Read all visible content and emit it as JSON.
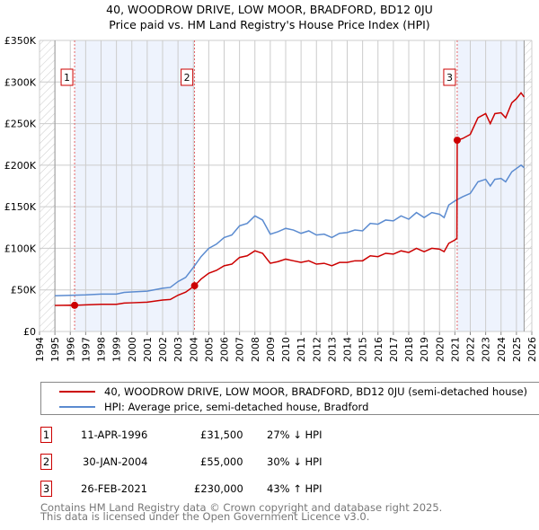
{
  "chart_data": {
    "type": "line",
    "title": "40, WOODROW DRIVE, LOW MOOR, BRADFORD, BD12 0JU",
    "subtitle": "Price paid vs. HM Land Registry's House Price Index (HPI)",
    "xlim": [
      1994,
      2026
    ],
    "ylim": [
      0,
      350000
    ],
    "x_ticks": [
      "1994",
      "1995",
      "1996",
      "1997",
      "1998",
      "1999",
      "2000",
      "2001",
      "2002",
      "2003",
      "2004",
      "2005",
      "2006",
      "2007",
      "2008",
      "2009",
      "2010",
      "2011",
      "2012",
      "2013",
      "2014",
      "2015",
      "2016",
      "2017",
      "2018",
      "2019",
      "2020",
      "2021",
      "2022",
      "2023",
      "2024",
      "2025",
      "2026"
    ],
    "y_ticks": [
      {
        "v": 0,
        "label": "£0"
      },
      {
        "v": 50000,
        "label": "£50K"
      },
      {
        "v": 100000,
        "label": "£100K"
      },
      {
        "v": 150000,
        "label": "£150K"
      },
      {
        "v": 200000,
        "label": "£200K"
      },
      {
        "v": 250000,
        "label": "£250K"
      },
      {
        "v": 300000,
        "label": "£300K"
      },
      {
        "v": 350000,
        "label": "£350K"
      }
    ],
    "grid": true,
    "shaded_periods": [
      [
        1996.28,
        2004.08
      ],
      [
        2021.15,
        2025.5
      ]
    ],
    "hatched_before": 1995,
    "hatched_after": 2025.5,
    "series": [
      {
        "name": "40, WOODROW DRIVE, LOW MOOR, BRADFORD, BD12 0JU (semi-detached house)",
        "color": "#cc0000",
        "x": [
          1995,
          1996,
          1996.28,
          1997,
          1998,
          1999,
          1999.5,
          2000,
          2001,
          2002,
          2002.5,
          2003,
          2003.5,
          2004.08,
          2004.5,
          2005,
          2005.5,
          2006,
          2006.5,
          2007,
          2007.5,
          2008,
          2008.5,
          2009,
          2009.5,
          2010,
          2010.5,
          2011,
          2011.5,
          2012,
          2012.5,
          2013,
          2013.5,
          2014,
          2014.5,
          2015,
          2015.5,
          2016,
          2016.5,
          2017,
          2017.5,
          2018,
          2018.5,
          2019,
          2019.5,
          2020,
          2020.3,
          2020.6,
          2021,
          2021.13,
          2021.15,
          2021.5,
          2022,
          2022.5,
          2023,
          2023.3,
          2023.6,
          2024,
          2024.3,
          2024.7,
          2025,
          2025.3,
          2025.5
        ],
        "y": [
          31300,
          31600,
          31500,
          32000,
          32700,
          32700,
          34200,
          34500,
          35300,
          37800,
          38500,
          43600,
          47300,
          55000,
          63000,
          70000,
          73500,
          79000,
          81000,
          89000,
          91000,
          97000,
          94000,
          82000,
          84000,
          87000,
          85000,
          83000,
          85000,
          81000,
          82000,
          79000,
          83000,
          83000,
          85000,
          85000,
          91000,
          90000,
          94000,
          93000,
          97000,
          95000,
          100000,
          96000,
          100000,
          99000,
          96000,
          106000,
          110000,
          112000,
          230000,
          232000,
          237000,
          257000,
          262000,
          250000,
          262000,
          263000,
          257000,
          275000,
          280000,
          287000,
          282000
        ]
      },
      {
        "name": "HPI: Average price, semi-detached house, Bradford",
        "color": "#5b8bd0",
        "x": [
          1995,
          1996,
          1997,
          1998,
          1999,
          1999.5,
          2000,
          2001,
          2002,
          2002.5,
          2003,
          2003.5,
          2004,
          2004.5,
          2005,
          2005.5,
          2006,
          2006.5,
          2007,
          2007.5,
          2008,
          2008.5,
          2009,
          2009.5,
          2010,
          2010.5,
          2011,
          2011.5,
          2012,
          2012.5,
          2013,
          2013.5,
          2014,
          2014.5,
          2015,
          2015.5,
          2016,
          2016.5,
          2017,
          2017.5,
          2018,
          2018.5,
          2019,
          2019.5,
          2020,
          2020.3,
          2020.6,
          2021,
          2021.5,
          2022,
          2022.5,
          2023,
          2023.3,
          2023.6,
          2024,
          2024.3,
          2024.7,
          2025,
          2025.3,
          2025.5
        ],
        "y": [
          43000,
          43500,
          44000,
          45000,
          45000,
          47000,
          47500,
          48500,
          52000,
          53000,
          60000,
          65000,
          77000,
          90000,
          100000,
          105000,
          113000,
          116000,
          127000,
          130000,
          139000,
          134000,
          117000,
          120000,
          124000,
          122000,
          118000,
          121000,
          116000,
          117000,
          113000,
          118000,
          119000,
          122000,
          121000,
          130000,
          129000,
          134000,
          133000,
          139000,
          135000,
          143000,
          137000,
          143000,
          141000,
          137000,
          152000,
          157000,
          162000,
          166000,
          180000,
          183000,
          175000,
          183000,
          184000,
          180000,
          192000,
          196000,
          200000,
          197000
        ]
      }
    ],
    "sales": [
      {
        "n": "1",
        "x": 2004.08,
        "xs": 1996.28,
        "date": "11-APR-1996",
        "price": "£31,500",
        "price_v": 31500,
        "hpi": "27% ↓ HPI"
      },
      {
        "n": "2",
        "xs": 2004.08,
        "date": "30-JAN-2004",
        "price": "£55,000",
        "price_v": 55000,
        "hpi": "30% ↓ HPI"
      },
      {
        "n": "3",
        "xs": 2021.15,
        "date": "26-FEB-2021",
        "price": "£230,000",
        "price_v": 230000,
        "hpi": "43% ↑ HPI"
      }
    ]
  },
  "footer": {
    "line1": "Contains HM Land Registry data © Crown copyright and database right 2025.",
    "line2": "This data is licensed under the Open Government Licence v3.0."
  }
}
